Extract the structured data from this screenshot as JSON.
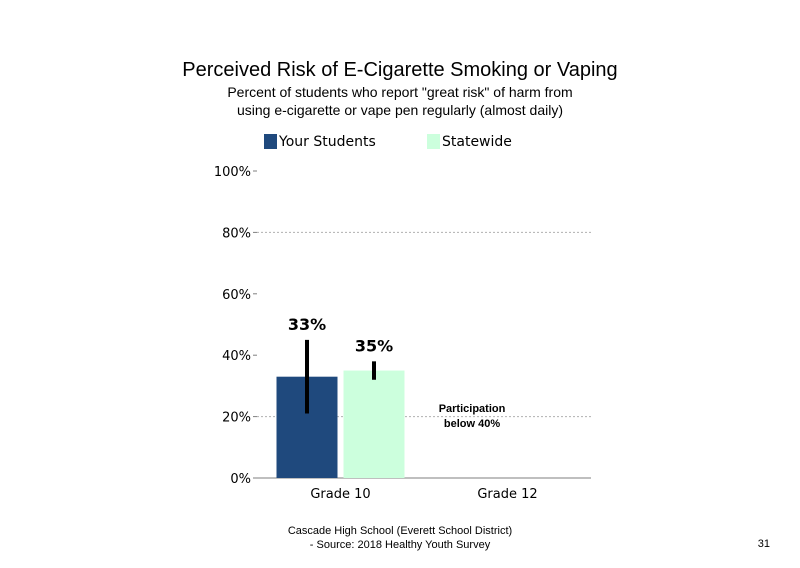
{
  "title": "Perceived Risk of E-Cigarette Smoking or Vaping",
  "subtitle_line1": "Percent of students who report \"great risk\" of harm from",
  "subtitle_line2": "using e-cigarette or vape pen regularly (almost daily)",
  "legend": [
    {
      "label": "Your Students",
      "color": "#1f497d"
    },
    {
      "label": "Statewide",
      "color": "#ccffdd"
    }
  ],
  "chart_data": {
    "type": "bar",
    "categories": [
      "Grade 10",
      "Grade 12"
    ],
    "series": [
      {
        "name": "Your Students",
        "color": "#1f497d",
        "values": [
          33,
          null
        ],
        "labels": [
          "33%",
          ""
        ],
        "error_low": [
          21,
          null
        ],
        "error_high": [
          45,
          null
        ]
      },
      {
        "name": "Statewide",
        "color": "#ccffdd",
        "values": [
          35,
          null
        ],
        "labels": [
          "35%",
          ""
        ],
        "error_low": [
          32,
          null
        ],
        "error_high": [
          38,
          null
        ]
      }
    ],
    "yticks": [
      "0%",
      "20%",
      "40%",
      "60%",
      "80%",
      "100%"
    ],
    "ylim": [
      0,
      100
    ],
    "gridlines": [
      20,
      80
    ],
    "annotation": [
      "Participation",
      "below 40%"
    ]
  },
  "footer_line1": "Cascade High School (Everett School District)",
  "footer_line2": "- Source: 2018 Healthy Youth Survey",
  "page_number": "31"
}
